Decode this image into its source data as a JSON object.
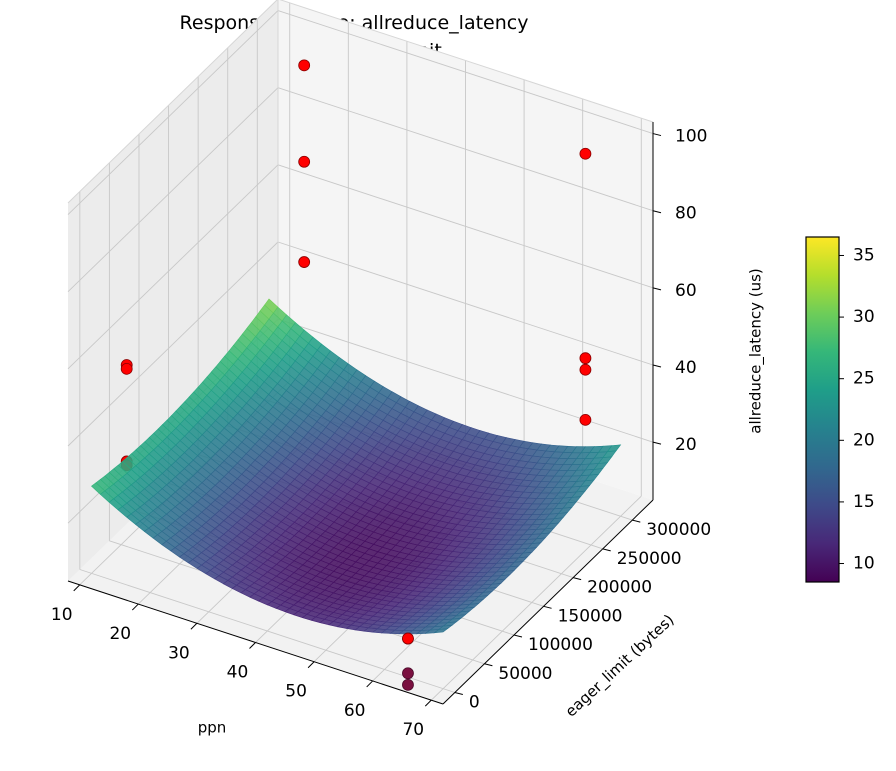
{
  "chart_data": {
    "type": "surface3d",
    "title": "Response Surface: allreduce_latency",
    "subtitle": "ppn vs eager_limit",
    "xlabel": "ppn",
    "ylabel": "eager_limit (bytes)",
    "zlabel": "allreduce_latency (us)",
    "x_ticks": [
      "10",
      "20",
      "30",
      "40",
      "50",
      "60",
      "70"
    ],
    "y_ticks": [
      "0",
      "50000",
      "100000",
      "150000",
      "200000",
      "250000",
      "300000"
    ],
    "z_ticks": [
      "20",
      "40",
      "60",
      "80",
      "100"
    ],
    "xlim": [
      8,
      72
    ],
    "ylim": [
      -20000,
      335000
    ],
    "zlim": [
      5,
      103
    ],
    "colorbar": {
      "colormap": "viridis",
      "range": [
        8.5,
        36.5
      ],
      "ticks": [
        "10",
        "15",
        "20",
        "25",
        "30",
        "35"
      ]
    },
    "surface_model": "quadratic fit: z = 9.5 + 0.0132*(ppn-45)^2 + 1.6e-10*(eager_limit-110000)^2",
    "surface_domain": {
      "x": [
        10,
        70
      ],
      "y": [
        0,
        300000
      ]
    },
    "scatter_color": "#ff0000",
    "points": [
      {
        "x": 16,
        "y": 0,
        "z": 62
      },
      {
        "x": 16,
        "y": 0,
        "z": 61
      },
      {
        "x": 16,
        "y": 0,
        "z": 37
      },
      {
        "x": 16,
        "y": 0,
        "z": 36
      },
      {
        "x": 16,
        "y": 300000,
        "z": 95
      },
      {
        "x": 16,
        "y": 300000,
        "z": 70
      },
      {
        "x": 16,
        "y": 300000,
        "z": 44
      },
      {
        "x": 64,
        "y": 300000,
        "z": 96
      },
      {
        "x": 64,
        "y": 300000,
        "z": 43
      },
      {
        "x": 64,
        "y": 300000,
        "z": 40
      },
      {
        "x": 64,
        "y": 300000,
        "z": 27
      },
      {
        "x": 64,
        "y": 0,
        "z": 15
      },
      {
        "x": 64,
        "y": 0,
        "z": 6
      },
      {
        "x": 64,
        "y": 0,
        "z": 3
      }
    ]
  }
}
